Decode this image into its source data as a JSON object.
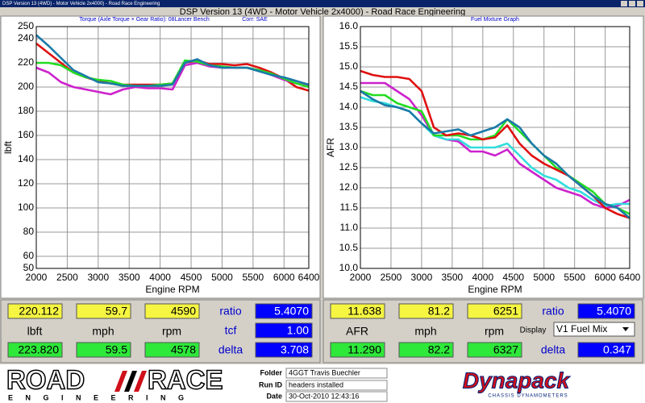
{
  "window": {
    "title": "DSP Version 13 (4WD) - Motor Vehicle 2x4000) - Road Race Engineering",
    "caption": "DSP Version 13 (4WD - Motor Vehicle 2x4000) - Road Race Engineering"
  },
  "chart_data": [
    {
      "type": "line",
      "title": "Torque (Axle Torque × Gear Ratio): 08Lancer Bench",
      "subtitle": "Corr: SAE",
      "x_label": "Engine RPM",
      "y_label": "lbft",
      "grid": true,
      "xlim": [
        2000,
        6400
      ],
      "xticks": [
        2000,
        2500,
        3000,
        3500,
        4000,
        4500,
        5000,
        5500,
        6000,
        6400
      ],
      "ylim": [
        50,
        250
      ],
      "yticks": [
        50,
        60,
        80,
        100,
        120,
        140,
        160,
        180,
        200,
        220,
        240,
        250
      ],
      "x": [
        2000,
        2200,
        2400,
        2600,
        2800,
        3000,
        3200,
        3400,
        3600,
        3800,
        4000,
        4200,
        4400,
        4600,
        4800,
        5000,
        5200,
        5400,
        5600,
        5800,
        6000,
        6200,
        6400
      ],
      "series": [
        {
          "color": "#e01010",
          "values": [
            236,
            228,
            220,
            212,
            208,
            205,
            203,
            202,
            202,
            202,
            202,
            203,
            220,
            222,
            219,
            219,
            218,
            219,
            216,
            212,
            207,
            200,
            197
          ]
        },
        {
          "color": "#cc22cc",
          "values": [
            216,
            212,
            204,
            200,
            198,
            196,
            194,
            198,
            200,
            199,
            199,
            198,
            218,
            220,
            217,
            216,
            216,
            216,
            214,
            210,
            206,
            203,
            201
          ]
        },
        {
          "color": "#22dd22",
          "values": [
            220,
            220,
            218,
            212,
            208,
            206,
            205,
            202,
            201,
            201,
            202,
            203,
            222,
            221,
            218,
            217,
            216,
            216,
            214,
            211,
            207,
            203,
            200
          ]
        },
        {
          "color": "#1a7aa8",
          "values": [
            243,
            234,
            224,
            214,
            209,
            204,
            203,
            201,
            201,
            201,
            201,
            202,
            220,
            223,
            218,
            216,
            216,
            216,
            213,
            210,
            208,
            205,
            202
          ]
        }
      ]
    },
    {
      "type": "line",
      "title": "Fuel Mixture Graph",
      "x_label": "Engine RPM",
      "y_label": "AFR",
      "grid": true,
      "xlim": [
        2000,
        6400
      ],
      "xticks": [
        2000,
        2500,
        3000,
        3500,
        4000,
        4500,
        5000,
        5500,
        6000,
        6400
      ],
      "ylim": [
        10,
        16
      ],
      "yticks": [
        {
          "value": 10,
          "label": "10.0"
        },
        10.5,
        {
          "value": 11,
          "label": "11.0"
        },
        11.5,
        {
          "value": 12,
          "label": "12.0"
        },
        12.5,
        {
          "value": 13,
          "label": "13.0"
        },
        13.5,
        {
          "value": 14,
          "label": "14.0"
        },
        14.5,
        {
          "value": 15,
          "label": "15.0"
        },
        15.5,
        {
          "value": 16,
          "label": "16.0"
        }
      ],
      "x": [
        2000,
        2200,
        2400,
        2600,
        2800,
        3000,
        3200,
        3400,
        3600,
        3800,
        4000,
        4200,
        4400,
        4600,
        4800,
        5000,
        5200,
        5400,
        5600,
        5800,
        6000,
        6200,
        6400
      ],
      "series": [
        {
          "color": "#cc22cc",
          "values": [
            14.6,
            14.6,
            14.6,
            14.4,
            14.2,
            13.8,
            13.3,
            13.2,
            13.15,
            12.9,
            12.9,
            12.8,
            12.95,
            12.6,
            12.4,
            12.2,
            12.0,
            11.9,
            11.8,
            11.6,
            11.5,
            11.55,
            11.7
          ]
        },
        {
          "color": "#33dddd",
          "values": [
            14.25,
            14.15,
            14.1,
            14.0,
            13.9,
            13.6,
            13.3,
            13.2,
            13.2,
            13.0,
            13.0,
            13.0,
            13.1,
            12.8,
            12.5,
            12.3,
            12.2,
            12.0,
            11.9,
            11.7,
            11.55,
            11.6,
            11.6
          ]
        },
        {
          "color": "#22dd22",
          "values": [
            14.4,
            14.3,
            14.3,
            14.1,
            14.0,
            13.9,
            13.3,
            13.3,
            13.3,
            13.2,
            13.2,
            13.3,
            13.7,
            13.4,
            13.1,
            12.8,
            12.5,
            12.3,
            12.1,
            11.9,
            11.6,
            11.5,
            11.35
          ]
        },
        {
          "color": "#e01010",
          "values": [
            14.9,
            14.8,
            14.75,
            14.75,
            14.7,
            14.4,
            13.5,
            13.3,
            13.35,
            13.3,
            13.2,
            13.25,
            13.55,
            13.1,
            12.8,
            12.6,
            12.45,
            12.3,
            12.05,
            11.8,
            11.5,
            11.35,
            11.25
          ]
        },
        {
          "color": "#1a7aa8",
          "values": [
            14.4,
            14.2,
            14.05,
            14.0,
            13.9,
            13.6,
            13.35,
            13.4,
            13.45,
            13.3,
            13.4,
            13.5,
            13.7,
            13.5,
            13.1,
            12.8,
            12.6,
            12.3,
            12.05,
            11.8,
            11.6,
            11.5,
            11.25
          ]
        }
      ]
    }
  ],
  "readouts": [
    {
      "row1": [
        "220.112",
        "59.7",
        "4590"
      ],
      "units": [
        "lbft",
        "mph",
        "rpm"
      ],
      "row2": [
        "223.820",
        "59.5",
        "4578"
      ],
      "ratio_label": "ratio",
      "ratio": "5.4070",
      "tcf_label": "tcf",
      "tcf": "1.00",
      "delta_label": "delta",
      "delta": "3.708"
    },
    {
      "row1": [
        "11.638",
        "81.2",
        "6251"
      ],
      "units": [
        "AFR",
        "mph",
        "rpm"
      ],
      "row2": [
        "11.290",
        "82.2",
        "6327"
      ],
      "ratio_label": "ratio",
      "ratio": "5.4070",
      "display_label": "Display",
      "display": "V1 Fuel Mix",
      "delta_label": "delta",
      "delta": "0.347"
    }
  ],
  "run_info": {
    "folder_label": "Folder",
    "folder": "4GGT Travis Buechler",
    "run_label": "Run ID",
    "run": "headers installed",
    "date_label": "Date",
    "date": "30-Oct-2010 12:43:16"
  },
  "logos": {
    "left_a": "ROAD",
    "left_b": "RACE",
    "left_sub": "E N G I N E E R I N G",
    "right": "Dynapack",
    "right_sub": "CHASSIS DYNAMOMETERS"
  }
}
